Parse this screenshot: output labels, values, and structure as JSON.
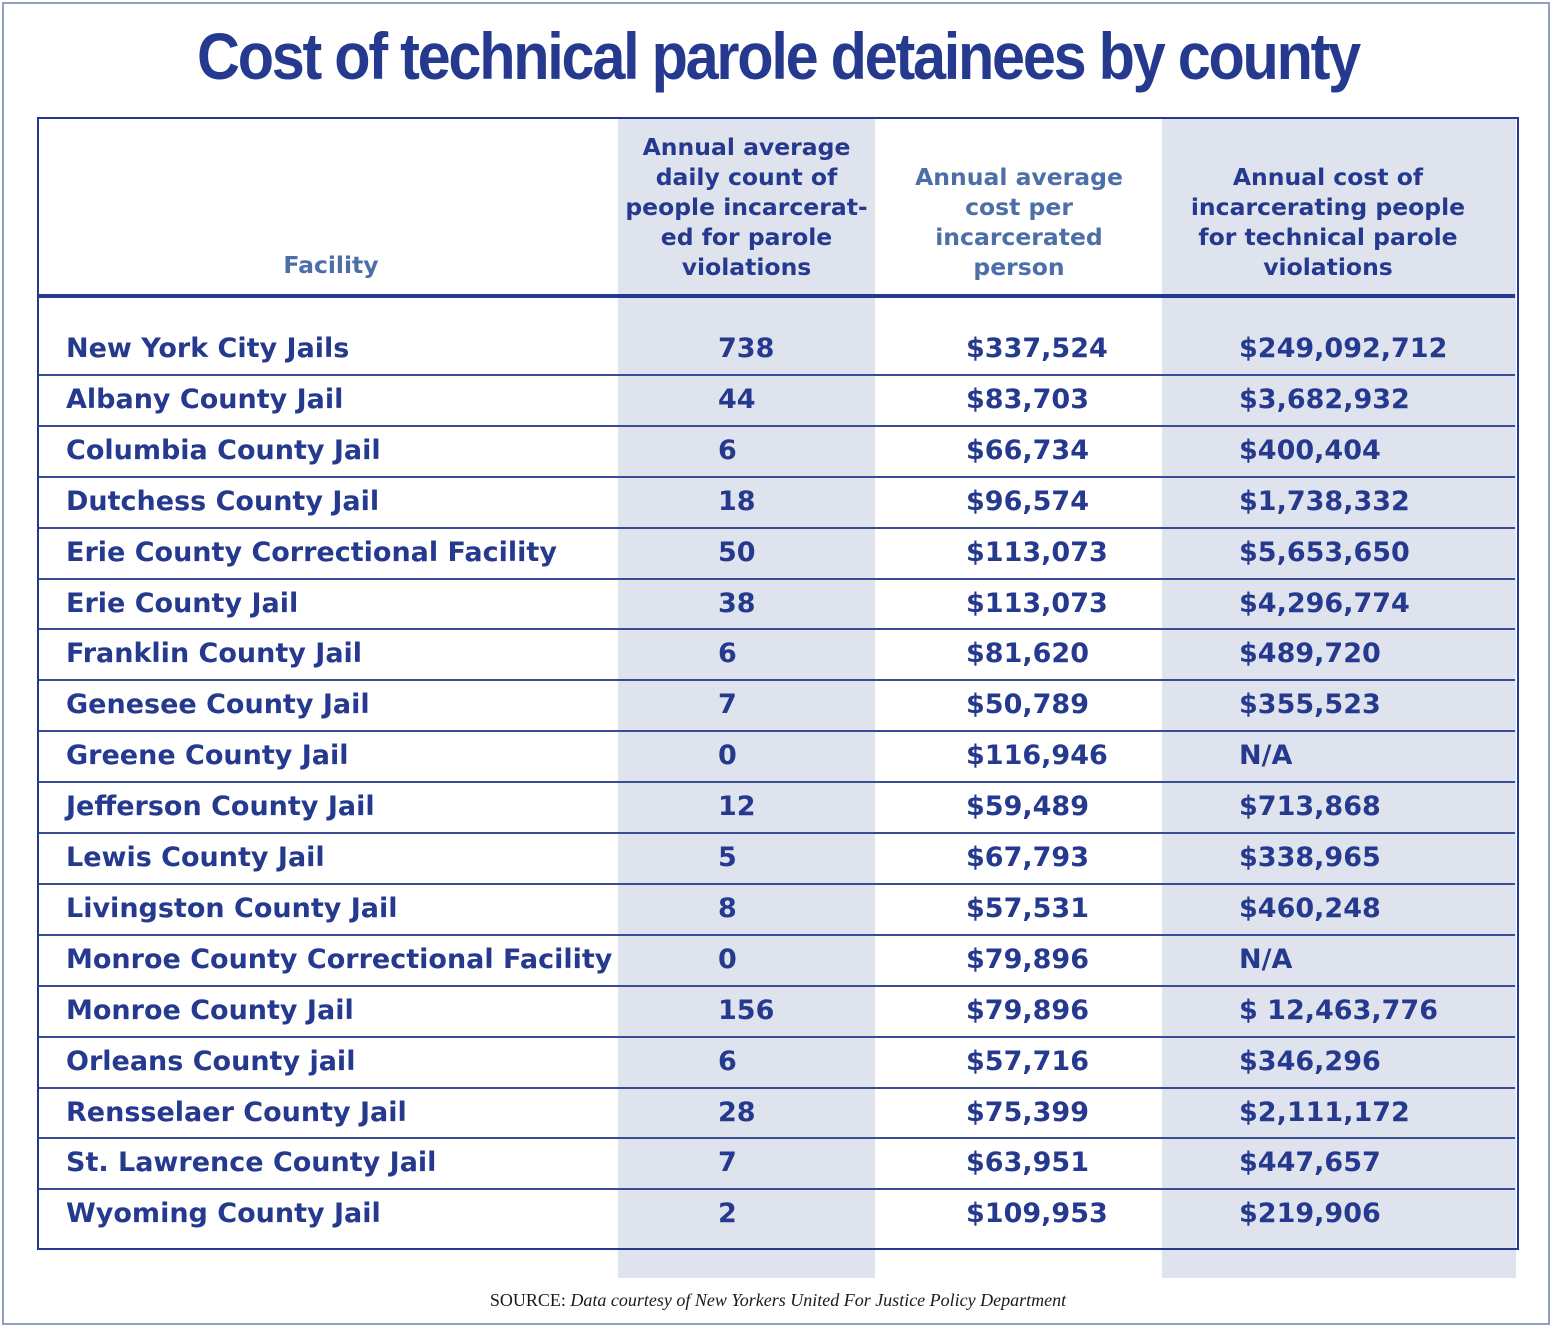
{
  "title": "Cost of technical parole detainees by county",
  "headers": {
    "facility": "Facility",
    "count": [
      "Annual average",
      "daily count of",
      "people incarcerat-",
      "ed for parole",
      "violations"
    ],
    "cost": [
      "Annual average",
      "cost per",
      "incarcerated",
      "person"
    ],
    "total": [
      "Annual cost of",
      "incarcerating people",
      "for technical parole",
      "violations"
    ]
  },
  "rows": [
    {
      "facility": "New York City Jails",
      "count": "738",
      "cost": "$337,524",
      "total": "$249,092,712"
    },
    {
      "facility": "Albany County Jail",
      "count": "44",
      "cost": "$83,703",
      "total": "$3,682,932"
    },
    {
      "facility": "Columbia County Jail",
      "count": "6",
      "cost": "$66,734",
      "total": "$400,404"
    },
    {
      "facility": "Dutchess County Jail",
      "count": "18",
      "cost": "$96,574",
      "total": "$1,738,332"
    },
    {
      "facility": "Erie County Correctional Facility",
      "count": "50",
      "cost": "$113,073",
      "total": "$5,653,650"
    },
    {
      "facility": "Erie County Jail",
      "count": "38",
      "cost": "$113,073",
      "total": "$4,296,774"
    },
    {
      "facility": "Franklin County Jail",
      "count": "6",
      "cost": "$81,620",
      "total": "$489,720"
    },
    {
      "facility": "Genesee County Jail",
      "count": "7",
      "cost": "$50,789",
      "total": "$355,523"
    },
    {
      "facility": "Greene County Jail",
      "count": "0",
      "cost": "$116,946",
      "total": "N/A"
    },
    {
      "facility": "Jefferson County Jail",
      "count": "12",
      "cost": "$59,489",
      "total": "$713,868"
    },
    {
      "facility": "Lewis County Jail",
      "count": "5",
      "cost": "$67,793",
      "total": "$338,965"
    },
    {
      "facility": "Livingston County Jail",
      "count": "8",
      "cost": "$57,531",
      "total": "$460,248"
    },
    {
      "facility": "Monroe County Correctional Facility",
      "count": "0",
      "cost": "$79,896",
      "total": "N/A"
    },
    {
      "facility": "Monroe County Jail",
      "count": "156",
      "cost": "$79,896",
      "total": "$ 12,463,776"
    },
    {
      "facility": "Orleans County jail",
      "count": "6",
      "cost": "$57,716",
      "total": "$346,296"
    },
    {
      "facility": "Rensselaer County Jail",
      "count": "28",
      "cost": "$75,399",
      "total": "$2,111,172"
    },
    {
      "facility": "St. Lawrence County Jail",
      "count": "7",
      "cost": "$63,951",
      "total": "$447,657"
    },
    {
      "facility": "Wyoming County Jail",
      "count": "2",
      "cost": "$109,953",
      "total": "$219,906"
    }
  ],
  "source": {
    "label": "SOURCE:",
    "text": "Data courtesy of New Yorkers United For Justice Policy Department"
  }
}
